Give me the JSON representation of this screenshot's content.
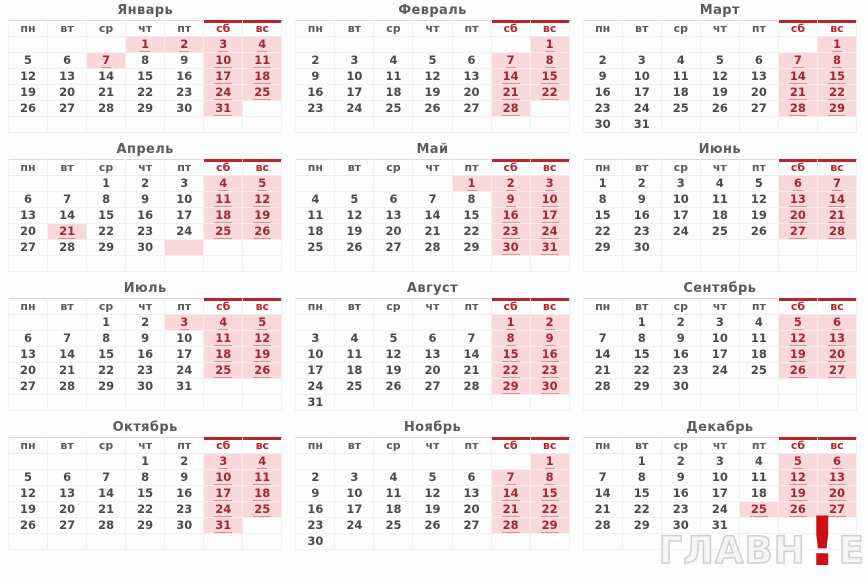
{
  "calendar": {
    "year_note": "production calendar grid",
    "weekday_headers": [
      "пн",
      "вт",
      "ср",
      "чт",
      "пт",
      "сб",
      "вс"
    ],
    "months": [
      {
        "key": "january",
        "name": "Январь",
        "weeks": [
          [
            "",
            "",
            "",
            "1*",
            "2*",
            "3*",
            "4*"
          ],
          [
            "5",
            "6",
            "7*",
            "8",
            "9",
            "10*",
            "11*"
          ],
          [
            "12",
            "13",
            "14",
            "15",
            "16",
            "17*",
            "18*"
          ],
          [
            "19",
            "20",
            "21",
            "22",
            "23",
            "24*",
            "25*"
          ],
          [
            "26",
            "27",
            "28",
            "29",
            "30",
            "31*",
            ""
          ],
          [
            "",
            "",
            "",
            "",
            "",
            "",
            ""
          ]
        ]
      },
      {
        "key": "february",
        "name": "Февраль",
        "weeks": [
          [
            "",
            "",
            "",
            "",
            "",
            "",
            "1*"
          ],
          [
            "2",
            "3",
            "4",
            "5",
            "6",
            "7*",
            "8*"
          ],
          [
            "9",
            "10",
            "11",
            "12",
            "13",
            "14*",
            "15*"
          ],
          [
            "16",
            "17",
            "18",
            "19",
            "20",
            "21*",
            "22*"
          ],
          [
            "23",
            "24",
            "25",
            "26",
            "27",
            "28*",
            ""
          ],
          [
            "",
            "",
            "",
            "",
            "",
            "",
            ""
          ]
        ]
      },
      {
        "key": "march",
        "name": "Март",
        "weeks": [
          [
            "",
            "",
            "",
            "",
            "",
            "",
            "1*"
          ],
          [
            "2",
            "3",
            "4",
            "5",
            "6",
            "7*",
            "8*"
          ],
          [
            "9",
            "10",
            "11",
            "12",
            "13",
            "14*",
            "15*"
          ],
          [
            "16",
            "17",
            "18",
            "19",
            "20",
            "21*",
            "22*"
          ],
          [
            "23",
            "24",
            "25",
            "26",
            "27",
            "28*",
            "29*"
          ],
          [
            "30",
            "31",
            "",
            "",
            "",
            "",
            ""
          ]
        ]
      },
      {
        "key": "april",
        "name": "Апрель",
        "weeks": [
          [
            "",
            "",
            "1",
            "2",
            "3",
            "4*",
            "5*"
          ],
          [
            "6",
            "7",
            "8",
            "9",
            "10",
            "11*",
            "12*"
          ],
          [
            "13",
            "14",
            "15",
            "16",
            "17",
            "18*",
            "19*"
          ],
          [
            "20",
            "21*",
            "22",
            "23",
            "24",
            "25*",
            "26*"
          ],
          [
            "27",
            "28",
            "29",
            "30",
            "*",
            "",
            ""
          ],
          [
            "",
            "",
            "",
            "",
            "",
            "",
            ""
          ]
        ]
      },
      {
        "key": "may",
        "name": "Май",
        "weeks": [
          [
            "",
            "",
            "",
            "",
            "1*",
            "2*",
            "3*"
          ],
          [
            "4",
            "5",
            "6",
            "7",
            "8",
            "9*",
            "10*"
          ],
          [
            "11",
            "12",
            "13",
            "14",
            "15",
            "16*",
            "17*"
          ],
          [
            "18",
            "19",
            "20",
            "21",
            "22",
            "23*",
            "24*"
          ],
          [
            "25",
            "26",
            "27",
            "28",
            "29",
            "30*",
            "31*"
          ],
          [
            "",
            "",
            "",
            "",
            "",
            "",
            ""
          ]
        ]
      },
      {
        "key": "june",
        "name": "Июнь",
        "weeks": [
          [
            "1",
            "2",
            "3",
            "4",
            "5",
            "6*",
            "7*"
          ],
          [
            "8",
            "9",
            "10",
            "11",
            "12",
            "13*",
            "14*"
          ],
          [
            "15",
            "16",
            "17",
            "18",
            "19",
            "20*",
            "21*"
          ],
          [
            "22",
            "23",
            "24",
            "25",
            "26",
            "27*",
            "28*"
          ],
          [
            "29",
            "30",
            "",
            "",
            "",
            "",
            ""
          ],
          [
            "",
            "",
            "",
            "",
            "",
            "",
            ""
          ]
        ]
      },
      {
        "key": "july",
        "name": "Июль",
        "weeks": [
          [
            "",
            "",
            "1",
            "2",
            "3*",
            "4*",
            "5*"
          ],
          [
            "6",
            "7",
            "8",
            "9",
            "10",
            "11*",
            "12*"
          ],
          [
            "13",
            "14",
            "15",
            "16",
            "17",
            "18*",
            "19*"
          ],
          [
            "20",
            "21",
            "22",
            "23",
            "24",
            "25*",
            "26*"
          ],
          [
            "27",
            "28",
            "29",
            "30",
            "31",
            "",
            ""
          ],
          [
            "",
            "",
            "",
            "",
            "",
            "",
            ""
          ]
        ]
      },
      {
        "key": "august",
        "name": "Август",
        "weeks": [
          [
            "",
            "",
            "",
            "",
            "",
            "1*",
            "2*"
          ],
          [
            "3",
            "4",
            "5",
            "6",
            "7",
            "8*",
            "9*"
          ],
          [
            "10",
            "11",
            "12",
            "13",
            "14",
            "15*",
            "16*"
          ],
          [
            "17",
            "18",
            "19",
            "20",
            "21",
            "22*",
            "23*"
          ],
          [
            "24",
            "25",
            "26",
            "27",
            "28",
            "29*",
            "30*"
          ],
          [
            "31",
            "",
            "",
            "",
            "",
            "",
            ""
          ]
        ]
      },
      {
        "key": "september",
        "name": "Сентябрь",
        "weeks": [
          [
            "",
            "1",
            "2",
            "3",
            "4",
            "5*",
            "6*"
          ],
          [
            "7",
            "8",
            "9",
            "10",
            "11",
            "12*",
            "13*"
          ],
          [
            "14",
            "15",
            "16",
            "17",
            "18",
            "19*",
            "20*"
          ],
          [
            "21",
            "22",
            "23",
            "24",
            "25",
            "26*",
            "27*"
          ],
          [
            "28",
            "29",
            "30",
            "",
            "",
            "",
            ""
          ],
          [
            "",
            "",
            "",
            "",
            "",
            "",
            ""
          ]
        ]
      },
      {
        "key": "october",
        "name": "Октябрь",
        "weeks": [
          [
            "",
            "",
            "",
            "1",
            "2",
            "3*",
            "4*"
          ],
          [
            "5",
            "6",
            "7",
            "8",
            "9",
            "10*",
            "11*"
          ],
          [
            "12",
            "13",
            "14",
            "15",
            "16",
            "17*",
            "18*"
          ],
          [
            "19",
            "20",
            "21",
            "22",
            "23",
            "24*",
            "25*"
          ],
          [
            "26",
            "27",
            "28",
            "29",
            "30",
            "31*",
            ""
          ],
          [
            "",
            "",
            "",
            "",
            "",
            "",
            ""
          ]
        ]
      },
      {
        "key": "november",
        "name": "Ноябрь",
        "weeks": [
          [
            "",
            "",
            "",
            "",
            "",
            "",
            "1*"
          ],
          [
            "2",
            "3",
            "4",
            "5",
            "6",
            "7*",
            "8*"
          ],
          [
            "9",
            "10",
            "11",
            "12",
            "13",
            "14*",
            "15*"
          ],
          [
            "16",
            "17",
            "18",
            "19",
            "20",
            "21*",
            "22*"
          ],
          [
            "23",
            "24",
            "25",
            "26",
            "27",
            "28*",
            "29*"
          ],
          [
            "30",
            "",
            "",
            "",
            "",
            "",
            ""
          ]
        ]
      },
      {
        "key": "december",
        "name": "Декабрь",
        "weeks": [
          [
            "",
            "1",
            "2",
            "3",
            "4",
            "5*",
            "6*"
          ],
          [
            "7",
            "8",
            "9",
            "10",
            "11",
            "12*",
            "13*"
          ],
          [
            "14",
            "15",
            "16",
            "17",
            "18",
            "19*",
            "20*"
          ],
          [
            "21",
            "22",
            "23",
            "24",
            "25*",
            "26*",
            "27*"
          ],
          [
            "28",
            "29",
            "30",
            "31",
            "",
            "",
            ""
          ],
          [
            "",
            "",
            "",
            "",
            "",
            "",
            ""
          ]
        ]
      }
    ]
  },
  "watermark": {
    "left": "ГЛАВН",
    "mark": "!",
    "right": "Е"
  },
  "colors": {
    "highlight_bg": "#f8d8d8",
    "highlight_text": "#a32733",
    "weekend_header": "#b8252e",
    "weekday_text": "#4a4a4a",
    "title_text": "#5b5b5b",
    "watermark_red": "#cc1016"
  }
}
